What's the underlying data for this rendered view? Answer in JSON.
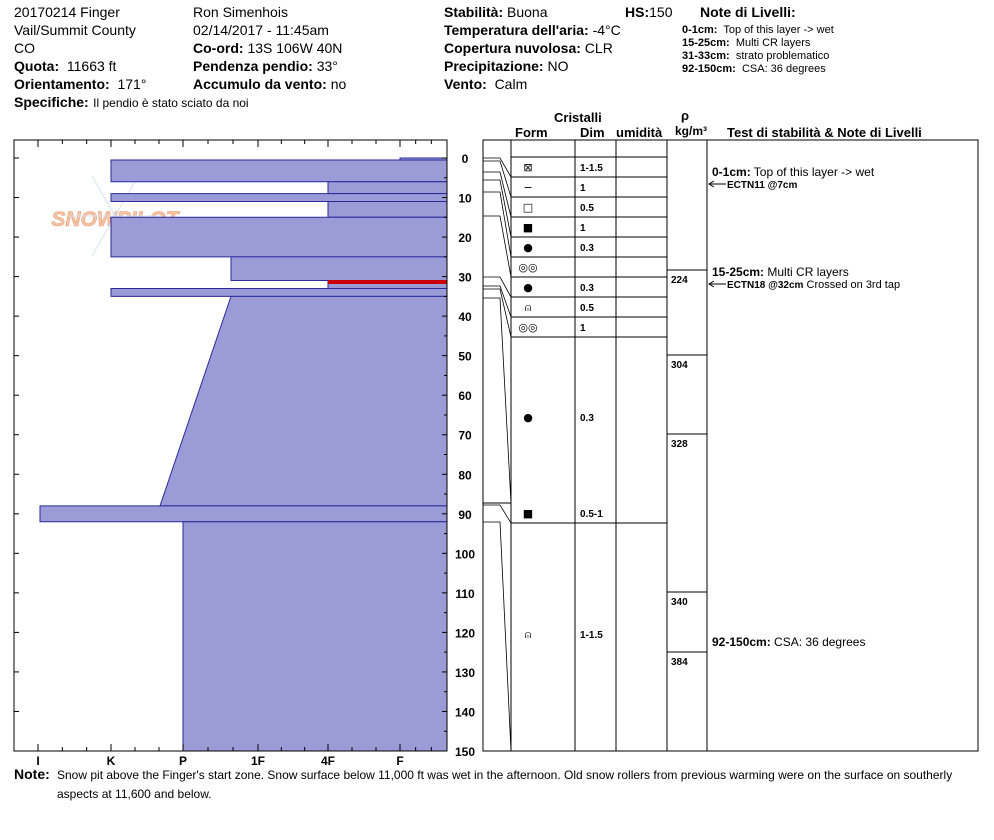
{
  "header": {
    "pit_name": "20170214 Finger",
    "location": "Vail/Summit County",
    "state": "CO",
    "elevation_label": "Quota:",
    "elevation_value": "11663 ft",
    "aspect_label": "Orientamento:",
    "aspect_value": "171°",
    "specifics_label": "Specifiche:",
    "specifics_value": "Il pendio è stato sciato da noi",
    "observer": "Ron Simenhois",
    "datetime": "02/14/2017 - 11:45am",
    "coord_label": "Co-ord:",
    "coord_value": "13S 106W 40N",
    "slope_label": "Pendenza pendio:",
    "slope_value": "33°",
    "wind_loading_label": "Accumulo da vento:",
    "wind_loading_value": "no",
    "stability_label": "Stabilità:",
    "stability_value": "Buona",
    "hs_label": "HS:",
    "hs_value": "150",
    "air_temp_label": "Temperatura dell'aria:",
    "air_temp_value": "-4°C",
    "sky_label": "Copertura nuvolosa:",
    "sky_value": "CLR",
    "precip_label": "Precipitazione:",
    "precip_value": "NO",
    "wind_label": "Vento:",
    "wind_value": "Calm"
  },
  "layer_notes": {
    "title": "Note di Livelli:",
    "items": [
      {
        "range": "0-1cm:",
        "text": "Top of this layer -> wet"
      },
      {
        "range": "15-25cm:",
        "text": "Multi CR layers"
      },
      {
        "range": "31-33cm:",
        "text": "strato problematico"
      },
      {
        "range": "92-150cm:",
        "text": "CSA: 36 degrees"
      }
    ]
  },
  "watermark": "SNOWPILOT",
  "columns": {
    "crystals": "Cristalli",
    "form": "Form",
    "dim": "Dim",
    "moisture": "umidità",
    "rho": "ρ",
    "rho_unit": "kg/m³",
    "stability_notes": "Test di stabilità & Note di Livelli"
  },
  "note": {
    "label": "Note:",
    "line1": "Snow pit above the Finger's start zone. Snow surface below 11,000 ft was wet in the afternoon. Old snow rollers from previous warming were on the surface on southerly",
    "line2": "aspects at 11,600 and below."
  },
  "colors": {
    "fill": "#9b9bd8",
    "stroke": "#2a2a9a",
    "red": "#cc0000"
  },
  "chart_data": {
    "type": "snow_profile",
    "depth_axis": {
      "min": 0,
      "max": 150,
      "ticks": [
        0,
        10,
        20,
        30,
        40,
        50,
        60,
        70,
        80,
        90,
        100,
        110,
        120,
        130,
        140,
        150
      ]
    },
    "hardness_axis": {
      "labels": [
        "I",
        "K",
        "P",
        "1F",
        "4F",
        "F"
      ]
    },
    "hardness_layers": [
      {
        "top": 0,
        "bottom": 0.5,
        "hardness": "F"
      },
      {
        "top": 0.5,
        "bottom": 6,
        "hardness": "K"
      },
      {
        "top": 6,
        "bottom": 9,
        "hardness": "4F"
      },
      {
        "top": 9,
        "bottom": 11,
        "hardness": "K"
      },
      {
        "top": 11,
        "bottom": 15,
        "hardness": "4F"
      },
      {
        "top": 15,
        "bottom": 25,
        "hardness": "K"
      },
      {
        "top": 25,
        "bottom": 31,
        "hardness": "1F+"
      },
      {
        "top": 31,
        "bottom": 33,
        "hardness": "4F"
      },
      {
        "top": 33,
        "bottom": 35,
        "hardness": "K"
      },
      {
        "top": 35,
        "bottom": 88,
        "hardness_top": "1F+",
        "hardness_bottom": "P-"
      },
      {
        "top": 88,
        "bottom": 92,
        "hardness": "I+"
      },
      {
        "top": 92,
        "bottom": 150,
        "hardness": "P"
      }
    ],
    "red_layer": {
      "top": 31,
      "bottom": 32
    },
    "crystal_rows": [
      {
        "form": "⊠",
        "size": "1-1.5"
      },
      {
        "form": "−",
        "size": "1"
      },
      {
        "form": "□",
        "size": "0.5"
      },
      {
        "form": "■",
        "size": "1"
      },
      {
        "form": "●",
        "size": "0.3"
      },
      {
        "form": "◎◎",
        "size": ""
      },
      {
        "form": "●",
        "size": "0.3"
      },
      {
        "form": "⍝",
        "size": "0.5"
      },
      {
        "form": "◎◎",
        "size": "1"
      },
      {
        "form": "●",
        "size": "0.3"
      },
      {
        "form": "■",
        "size": "0.5-1"
      },
      {
        "form": "⍝",
        "size": "1-1.5"
      }
    ],
    "density": [
      {
        "depth": 30,
        "value": 224
      },
      {
        "depth": 50,
        "value": 304
      },
      {
        "depth": 70,
        "value": 328
      },
      {
        "depth": 110,
        "value": 340
      },
      {
        "depth": 125,
        "value": 384
      }
    ],
    "tests": [
      {
        "depth": 7,
        "label": "ECTN11 @7cm",
        "note": ""
      },
      {
        "depth": 32,
        "label": "ECTN18 @32cm",
        "note": "Crossed on 3rd tap"
      }
    ],
    "notes": [
      {
        "depth": 0,
        "range": "0-1cm:",
        "text": "Top of this layer -> wet"
      },
      {
        "depth": 15,
        "range": "15-25cm:",
        "text": "Multi CR layers"
      },
      {
        "depth": 92,
        "range": "92-150cm:",
        "text": "CSA: 36 degrees"
      }
    ]
  }
}
